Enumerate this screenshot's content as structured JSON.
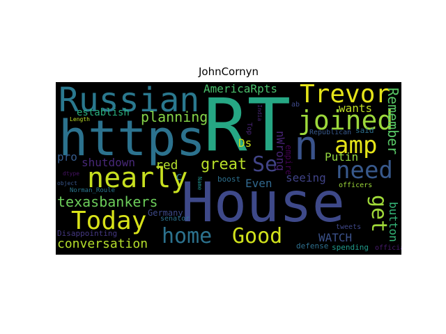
{
  "title": "JohnCornyn",
  "words": [
    {
      "text": "House",
      "color": "#3e4989"
    },
    {
      "text": "RT",
      "color": "#26a784"
    },
    {
      "text": "https",
      "color": "#2c728e"
    },
    {
      "text": "n",
      "color": "#3a538b"
    },
    {
      "text": "Russian",
      "color": "#2a788e"
    },
    {
      "text": "Trevor",
      "color": "#e5e419"
    },
    {
      "text": "joined",
      "color": "#9dd93b"
    },
    {
      "text": "amp",
      "color": "#e5e419"
    },
    {
      "text": "need",
      "color": "#38598c"
    },
    {
      "text": "Se",
      "color": "#414487"
    },
    {
      "text": "nearly",
      "color": "#c8e020"
    },
    {
      "text": "Today",
      "color": "#d8e219"
    },
    {
      "text": "home",
      "color": "#2c728e"
    },
    {
      "text": "Good",
      "color": "#d0e11c"
    },
    {
      "text": "get",
      "color": "#a0da39"
    },
    {
      "text": "conversation",
      "color": "#b5de2b"
    },
    {
      "text": "texasbankers",
      "color": "#6ccd5a"
    },
    {
      "text": "great",
      "color": "#b8de29"
    },
    {
      "text": "planning",
      "color": "#86d549"
    },
    {
      "text": "establish",
      "color": "#29af7f"
    },
    {
      "text": "AmericaRpts",
      "color": "#4ac16d"
    },
    {
      "text": "wants",
      "color": "#c0df25"
    },
    {
      "text": "Remember",
      "color": "#58c765"
    },
    {
      "text": "shutdown",
      "color": "#482878"
    },
    {
      "text": "pro",
      "color": "#365c8d"
    },
    {
      "text": "red",
      "color": "#b2dd2d"
    },
    {
      "text": "Ds",
      "color": "#cae11f"
    },
    {
      "text": "Putin",
      "color": "#94d840"
    },
    {
      "text": "seeing",
      "color": "#404387"
    },
    {
      "text": "Even",
      "color": "#31688e"
    },
    {
      "text": "WATCH",
      "color": "#3b528b"
    },
    {
      "text": "button",
      "color": "#35b779"
    },
    {
      "text": "nWrong",
      "color": "#482475"
    },
    {
      "text": "empire",
      "color": "#440154"
    },
    {
      "text": "boost",
      "color": "#2d708e"
    },
    {
      "text": "Germany",
      "color": "#3e4a89"
    },
    {
      "text": "senator",
      "color": "#2c728e"
    },
    {
      "text": "Disappointing",
      "color": "#453882"
    },
    {
      "text": "Norman_Roule",
      "color": "#2a768e"
    },
    {
      "text": "defense",
      "color": "#2e6f8e"
    },
    {
      "text": "spending",
      "color": "#1f9a8a"
    },
    {
      "text": "Republican",
      "color": "#38598c"
    },
    {
      "text": "said",
      "color": "#2d708e"
    },
    {
      "text": "tweets",
      "color": "#3f4889"
    },
    {
      "text": "officers",
      "color": "#9fda3a"
    },
    {
      "text": "officia",
      "color": "#481c6e"
    },
    {
      "text": "Length",
      "color": "#bddf26"
    },
    {
      "text": "dtype",
      "color": "#471365"
    },
    {
      "text": "object",
      "color": "#39568c"
    },
    {
      "text": "Name",
      "color": "#21908d"
    },
    {
      "text": "Top",
      "color": "#482576"
    },
    {
      "text": "India",
      "color": "#482878"
    },
    {
      "text": "ab",
      "color": "#3e4989"
    },
    {
      "text": "c",
      "color": "#2c738e"
    }
  ]
}
